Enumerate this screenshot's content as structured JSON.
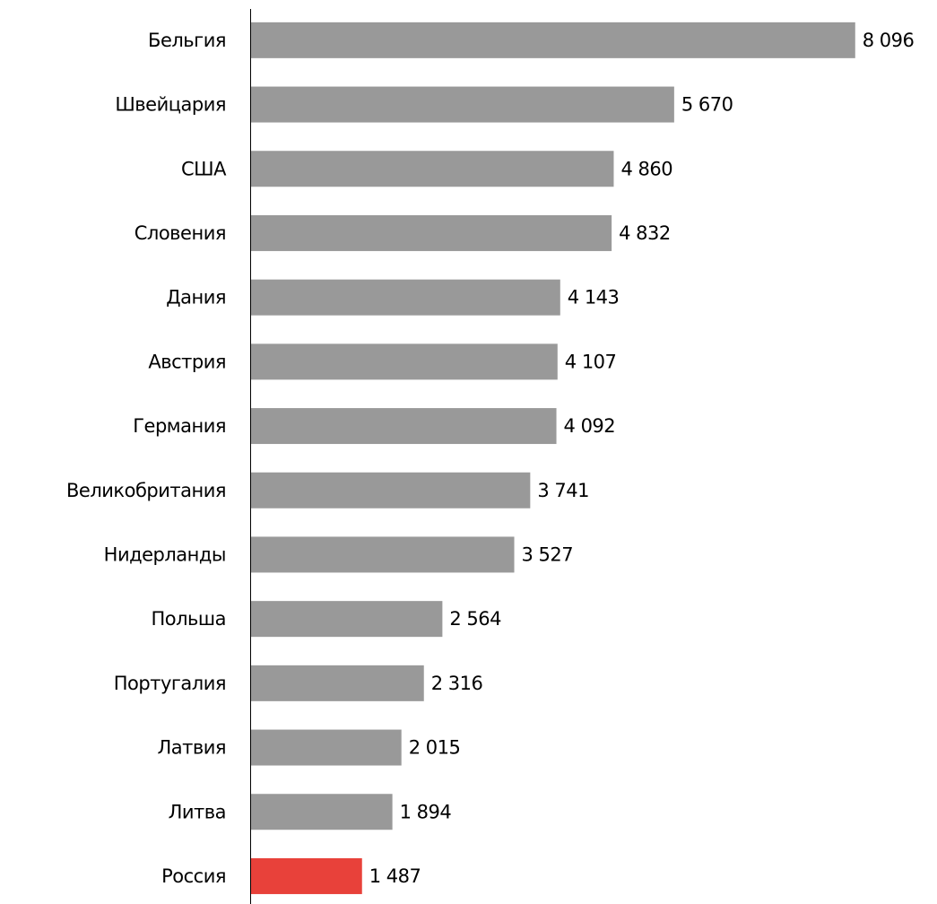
{
  "chart_data": {
    "type": "bar",
    "orientation": "horizontal",
    "categories": [
      "Бельгия",
      "Швейцария",
      "США",
      "Словения",
      "Дания",
      "Австрия",
      "Германия",
      "Великобритания",
      "Нидерланды",
      "Польша",
      "Португалия",
      "Латвия",
      "Литва",
      "Россия"
    ],
    "values": [
      8096,
      5670,
      4860,
      4832,
      4143,
      4107,
      4092,
      3741,
      3527,
      2564,
      2316,
      2015,
      1894,
      1487
    ],
    "value_labels": [
      "8 096",
      "5 670",
      "4 860",
      "4 832",
      "4 143",
      "4 107",
      "4 092",
      "3 741",
      "3 527",
      "2 564",
      "2 316",
      "2 015",
      "1 894",
      "1 487"
    ],
    "colors": [
      "#999999",
      "#999999",
      "#999999",
      "#999999",
      "#999999",
      "#999999",
      "#999999",
      "#999999",
      "#999999",
      "#999999",
      "#999999",
      "#999999",
      "#999999",
      "#e8413a"
    ],
    "xlim": [
      0,
      9000
    ]
  }
}
